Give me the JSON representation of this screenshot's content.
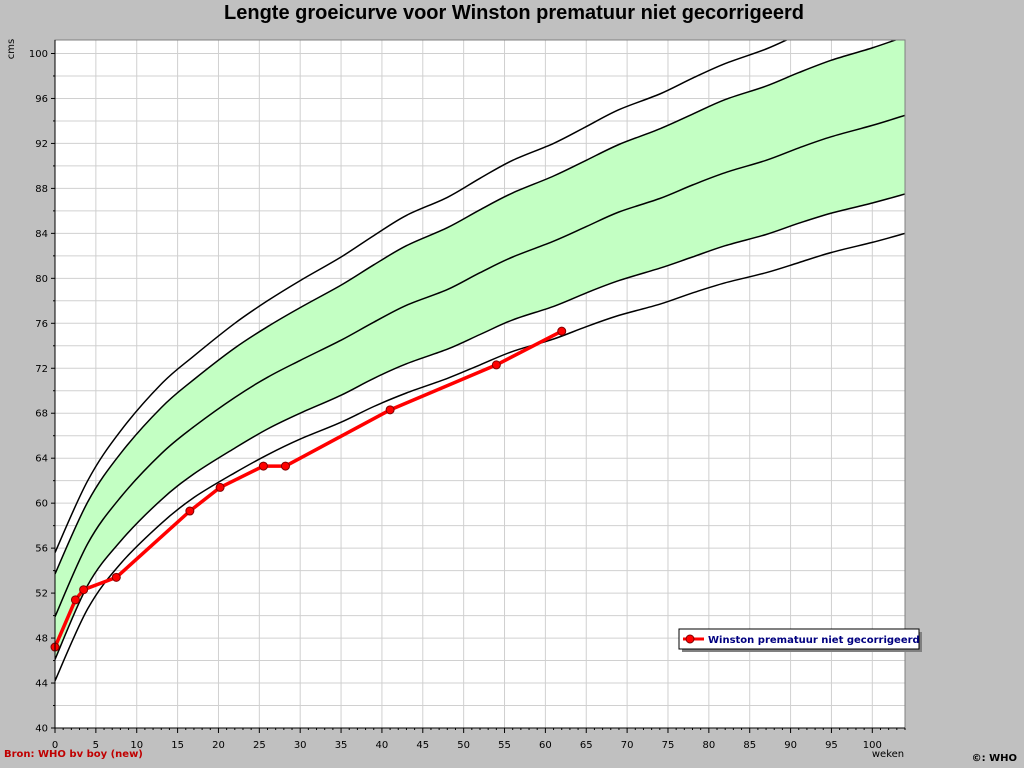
{
  "chart_data": {
    "type": "line",
    "title": "Lengte groeicurve voor Winston prematuur niet gecorrigeerd",
    "ylabel": "cms",
    "xlabel": "weken",
    "xlim": [
      0,
      104
    ],
    "ylim": [
      40,
      101
    ],
    "x_ticks": [
      0,
      5,
      10,
      15,
      20,
      25,
      30,
      35,
      40,
      45,
      50,
      55,
      60,
      65,
      70,
      75,
      80,
      85,
      90,
      95,
      100
    ],
    "y_ticks": [
      40,
      44,
      48,
      52,
      56,
      60,
      64,
      68,
      72,
      76,
      80,
      84,
      88,
      92,
      96,
      100
    ],
    "grid": true,
    "legend_position": "bottom-right",
    "reference_curves": {
      "x": [
        0,
        4,
        8,
        13,
        17,
        22,
        26,
        30,
        35,
        39,
        43,
        48,
        52,
        56,
        61,
        65,
        69,
        74,
        78,
        82,
        87,
        91,
        95,
        100,
        104
      ],
      "series": [
        {
          "values": [
            44.2,
            50.6,
            54.6,
            58.2,
            60.5,
            62.7,
            64.3,
            65.7,
            67.2,
            68.6,
            69.8,
            71.1,
            72.3,
            73.5,
            74.6,
            75.7,
            76.7,
            77.7,
            78.7,
            79.6,
            80.5,
            81.4,
            82.3,
            83.2,
            84.0
          ],
          "shade_below": false
        },
        {
          "values": [
            46.1,
            52.7,
            56.6,
            60.3,
            62.6,
            64.9,
            66.6,
            68.0,
            69.6,
            71.1,
            72.4,
            73.7,
            75.0,
            76.3,
            77.5,
            78.7,
            79.8,
            80.9,
            81.9,
            82.9,
            83.9,
            84.9,
            85.8,
            86.7,
            87.5
          ],
          "shade_below": false
        },
        {
          "values": [
            49.9,
            56.4,
            60.5,
            64.4,
            66.8,
            69.4,
            71.2,
            72.7,
            74.5,
            76.1,
            77.6,
            79.0,
            80.5,
            81.9,
            83.3,
            84.6,
            85.9,
            87.1,
            88.3,
            89.4,
            90.5,
            91.6,
            92.6,
            93.6,
            94.5
          ],
          "shade_below": true
        },
        {
          "values": [
            53.7,
            60.1,
            64.4,
            68.5,
            71.0,
            73.8,
            75.7,
            77.4,
            79.4,
            81.2,
            82.9,
            84.5,
            86.1,
            87.6,
            89.1,
            90.5,
            91.9,
            93.3,
            94.6,
            95.9,
            97.1,
            98.3,
            99.4,
            100.5,
            101.5
          ],
          "shade_below": false
        },
        {
          "values": [
            55.6,
            62.0,
            66.4,
            70.6,
            73.1,
            76.0,
            78.0,
            79.8,
            81.9,
            83.8,
            85.6,
            87.2,
            88.9,
            90.5,
            92.0,
            93.5,
            95.0,
            96.4,
            97.8,
            99.1,
            100.4,
            101.7,
            102.9,
            104.1,
            105.2
          ],
          "shade_below": false
        }
      ]
    },
    "series": [
      {
        "name": "Winston prematuur niet gecorrigeerd",
        "x": [
          0,
          2.5,
          3.5,
          7.5,
          16.5,
          20.2,
          25.5,
          28.2,
          41,
          54,
          62
        ],
        "y": [
          47.2,
          51.4,
          52.3,
          53.4,
          59.3,
          61.4,
          63.3,
          63.3,
          68.3,
          72.3,
          75.3
        ]
      }
    ],
    "source": "Bron: WHO bv boy (new)",
    "copyright": "©: WHO"
  },
  "colors": {
    "background": "#c0c0c0",
    "plot_bg": "#ffffff",
    "grid": "#d0d0d0",
    "band_fill": "#c3ffc3",
    "curve": "#000000",
    "patient_line": "#ff0000",
    "marker_fill": "#ff0000",
    "marker_stroke": "#800000",
    "legend_text": "#000080",
    "source_text": "#c00000"
  }
}
